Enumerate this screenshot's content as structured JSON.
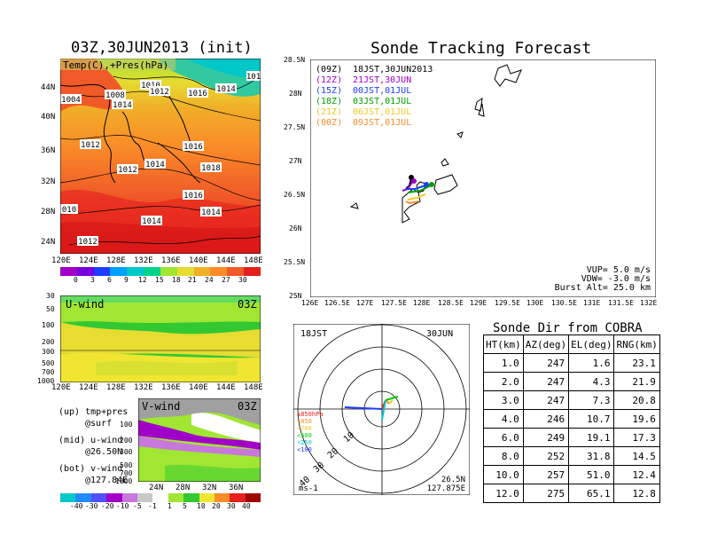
{
  "left": {
    "title": "03Z,30JUN2013 (init)",
    "top_label": "Temp(C),+Pres(hPa)",
    "top_lon_ticks": [
      "120E",
      "124E",
      "128E",
      "132E",
      "136E",
      "140E",
      "144E",
      "148E"
    ],
    "top_lat_ticks": [
      "44N",
      "40N",
      "36N",
      "32N",
      "28N",
      "24N"
    ],
    "isobar_labels": [
      "1004",
      "1008",
      "1010",
      "1012",
      "1014",
      "1016",
      "1016",
      "1014",
      "1012",
      "1012",
      "1014",
      "1016",
      "1018",
      "1016",
      "1014",
      "1014",
      "010",
      "1012",
      "1016",
      "101"
    ],
    "temp_colorbar": [
      "0",
      "3",
      "6",
      "9",
      "12",
      "15",
      "18",
      "21",
      "24",
      "27",
      "30"
    ],
    "temp_colors": [
      "#a000c8",
      "#7800dc",
      "#1e3cff",
      "#00a0ff",
      "#00c8c8",
      "#00d28c",
      "#a0e632",
      "#e6dc32",
      "#f0af28",
      "#fa8c28",
      "#f05a28",
      "#e61e1e"
    ],
    "u_label": "U-wind",
    "u_time": "03Z",
    "u_pres_ticks": [
      "30",
      "50",
      "100",
      "200",
      "300",
      "500",
      "700",
      "1000"
    ],
    "u_lon_ticks": [
      "120E",
      "124E",
      "128E",
      "132E",
      "136E",
      "140E",
      "144E",
      "148E"
    ],
    "v_label": "V-wind",
    "v_time": "03Z",
    "v_pres_ticks": [
      "100",
      "200",
      "300",
      "500",
      "700",
      "1000"
    ],
    "v_lat_ticks": [
      "24N",
      "28N",
      "32N",
      "36N"
    ],
    "legend_lines": [
      "(up) tmp+pres",
      "@surf",
      "(mid) u-wind",
      "@26.50N",
      "(bot) v-wind",
      "@127.84E"
    ],
    "wind_colorbar": [
      "-40",
      "-30",
      "-20",
      "-10",
      "-5",
      "-1",
      "1",
      "5",
      "10",
      "20",
      "30",
      "40"
    ],
    "wind_colors": [
      "#00c8c8",
      "#1e8cff",
      "#5050ff",
      "#a000c8",
      "#c878dc",
      "#c8c8c8",
      "#ffffff",
      "#a0e632",
      "#32c832",
      "#f0e632",
      "#fa8c28",
      "#e61e1e",
      "#a00000"
    ]
  },
  "track": {
    "title": "Sonde Tracking Forecast",
    "lat_ticks": [
      "28.5N",
      "28N",
      "27.5N",
      "27N",
      "26.5N",
      "26N",
      "25.5N",
      "25N"
    ],
    "lon_ticks": [
      "126E",
      "126.5E",
      "127E",
      "127.5E",
      "128E",
      "128.5E",
      "129E",
      "129.5E",
      "130E",
      "130.5E",
      "131E",
      "131.5E",
      "132E"
    ],
    "legend": [
      {
        "code": "(09Z)",
        "time": "18JST,30JUN2013",
        "color": "#000000"
      },
      {
        "code": "(12Z)",
        "time": "21JST,30JUN",
        "color": "#a000c8"
      },
      {
        "code": "(15Z)",
        "time": "00JST,01JUL",
        "color": "#1e3cff"
      },
      {
        "code": "(18Z)",
        "time": "03JST,01JUL",
        "color": "#00a000"
      },
      {
        "code": "(21Z)",
        "time": "06JST,01JUL",
        "color": "#f0c828"
      },
      {
        "code": "(00Z)",
        "time": "09JST,01JUL",
        "color": "#fa8c28"
      }
    ],
    "vup": "VUP= 5.0 m/s",
    "vdw": "VDW= -3.0 m/s",
    "burst": "Burst Alt= 25.0 km"
  },
  "polar": {
    "time_label": "18JST",
    "date_label": "30JUN",
    "ring_labels": [
      "10",
      "20",
      "30",
      "40"
    ],
    "pressure_legend": [
      {
        "text": "≥850hPa",
        "color": "#e61e1e"
      },
      {
        "text": "<850",
        "color": "#fa8c28"
      },
      {
        "text": "<700",
        "color": "#f0c828"
      },
      {
        "text": "<500",
        "color": "#00c800"
      },
      {
        "text": "<250",
        "color": "#00c8c8"
      },
      {
        "text": "<100",
        "color": "#1e3cff"
      }
    ],
    "loc_lat": "26.5N",
    "loc_lon": "127.875E",
    "unit": "ms-1"
  },
  "chart_data": [
    {
      "type": "table",
      "title": "Sonde Dir from COBRA",
      "columns": [
        "HT(km)",
        "AZ(deg)",
        "EL(deg)",
        "RNG(km)"
      ],
      "rows": [
        [
          "1.0",
          "247",
          "1.6",
          "23.1"
        ],
        [
          "2.0",
          "247",
          "4.3",
          "21.9"
        ],
        [
          "3.0",
          "247",
          "7.3",
          "20.8"
        ],
        [
          "4.0",
          "246",
          "10.7",
          "19.6"
        ],
        [
          "6.0",
          "249",
          "19.1",
          "17.3"
        ],
        [
          "8.0",
          "252",
          "31.8",
          "14.5"
        ],
        [
          "10.0",
          "257",
          "51.0",
          "12.4"
        ],
        [
          "12.0",
          "275",
          "65.1",
          "12.8"
        ]
      ]
    }
  ]
}
